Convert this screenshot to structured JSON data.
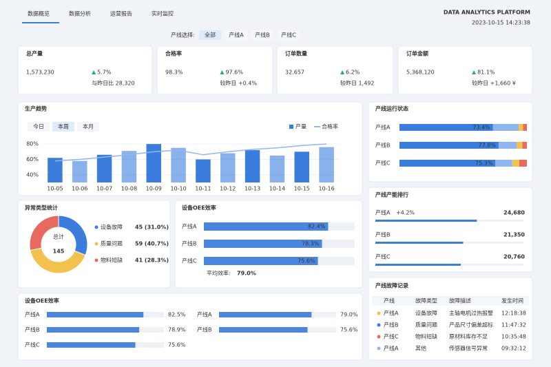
{
  "header": {
    "tabs": [
      "数据概览",
      "数据分析",
      "运营报告",
      "实时监控"
    ],
    "brand": "DATA ANALYTICS PLATFORM",
    "time": "2023-10-15 14:23:38"
  },
  "filter": {
    "label": "产线选择:",
    "options": [
      "全部",
      "产线A",
      "产线B",
      "产线C"
    ]
  },
  "kpis": [
    {
      "title": "总产量",
      "value": "1,573,230",
      "change": "5.7%",
      "note": "与昨日比 28,320"
    },
    {
      "title": "合格率",
      "value": "98.3%",
      "change": "97.6%",
      "note": "较昨日 +0.4%"
    },
    {
      "title": "订单数量",
      "value": "32,657",
      "change": "6.2%",
      "note": "较昨日 1,492"
    },
    {
      "title": "订单金额",
      "value": "5,368,120",
      "change": "81.1%",
      "note": "较昨日 +1,660 ¥"
    }
  ],
  "trend": {
    "title": "生产趋势",
    "tabs": [
      "今日",
      "本周",
      "本月"
    ],
    "categories": [
      "10-05",
      "10-06",
      "10-07",
      "10-08",
      "10-09",
      "10-10",
      "10-11",
      "10-12",
      "10-13",
      "10-14",
      "10-15",
      "10-16"
    ],
    "series": [
      {
        "name": "产量",
        "type": "bar",
        "color": "#3b7ddd",
        "values": [
          62,
          58,
          66,
          71,
          80,
          75,
          60,
          68,
          72,
          65,
          70,
          76
        ]
      },
      {
        "name": "合格率",
        "type": "line",
        "color": "#8fb6f0",
        "values": [
          58,
          60,
          63,
          66,
          70,
          72,
          66,
          70,
          73,
          75,
          78,
          80
        ]
      }
    ],
    "ylim": [
      30,
      90
    ],
    "yticks": [
      {
        "value": 40,
        "label": "40%"
      },
      {
        "value": 60,
        "label": "60%"
      },
      {
        "value": 80,
        "label": "80%"
      }
    ]
  },
  "status": {
    "title": "产线运行状态",
    "colors": [
      "#3b7ddd",
      "#8fb6f0",
      "#f2c14e",
      "#e86a5f"
    ],
    "rows": [
      {
        "name": "产线A",
        "segments": [
          73.4,
          20.1,
          3.5,
          3.0
        ],
        "value_label": "73.4%"
      },
      {
        "name": "产线B",
        "segments": [
          77.8,
          14.2,
          4.5,
          3.5
        ],
        "value_label": "77.8%"
      },
      {
        "name": "产线C",
        "segments": [
          75.3,
          13.2,
          5.5,
          6.0
        ],
        "value_label": "75.3%"
      }
    ]
  },
  "rank": {
    "title": "产线产能排行",
    "xlim": [
      0,
      36000
    ],
    "rows": [
      {
        "name": "产线A",
        "note": "+4.2%",
        "value": 24680,
        "value_label": "24,680"
      },
      {
        "name": "产线B",
        "value": 21350,
        "value_label": "21,350"
      },
      {
        "name": "产线C",
        "value": 20760,
        "value_label": "20,760"
      }
    ]
  },
  "faults": {
    "title": "产线故障记录",
    "headers": [
      "产线",
      "故障类型",
      "故障描述",
      "发生时间"
    ],
    "rows": [
      [
        "产线A",
        "设备故障",
        "主轴电机过热报警",
        "12:18:38"
      ],
      [
        "产线B",
        "质量问题",
        "产品尺寸偏差超标",
        "11:47:32"
      ],
      [
        "产线C",
        "物料短缺",
        "原材料库存不足",
        "10:35:48"
      ],
      [
        "产线A",
        "其他",
        "传感器信号异常",
        "09:32:12"
      ]
    ]
  },
  "donut": {
    "title": "异常类型统计",
    "center_label": "总计",
    "total": "145",
    "items": [
      {
        "name": "设备故障",
        "value": 45,
        "label": "45 (31.0%)",
        "color": "#3b7ddd"
      },
      {
        "name": "质量问题",
        "value": 59,
        "label": "59 (40.7%)",
        "color": "#f2c14e"
      },
      {
        "name": "物料短缺",
        "value": 41,
        "label": "41 (28.3%)",
        "color": "#e86a5f"
      }
    ]
  },
  "oee": {
    "title": "设备OEE效率",
    "xlim": [
      0,
      100
    ],
    "rows": [
      {
        "name": "产线A",
        "value": 82.4,
        "value_label": "82.4%"
      },
      {
        "name": "产线B",
        "value": 78.3,
        "value_label": "78.3%"
      },
      {
        "name": "产线C",
        "value": 75.6,
        "value_label": "75.6%"
      }
    ],
    "footnote": "平均效率:",
    "average": "79.0%"
  },
  "oee2": {
    "title": "设备OEE效率",
    "xlim": [
      0,
      100
    ],
    "columns": [
      [
        {
          "name": "产线A",
          "value": 82.5,
          "value_label": "82.5%"
        },
        {
          "name": "产线B",
          "value": 78.9,
          "value_label": "78.9%"
        },
        {
          "name": "产线C",
          "value": 75.6,
          "value_label": "75.6%"
        }
      ],
      [
        {
          "name": "产线A",
          "value": 79.0,
          "value_label": "79.0%"
        },
        {
          "name": "产线B",
          "value": 75.6,
          "value_label": "75.6%"
        }
      ]
    ]
  }
}
